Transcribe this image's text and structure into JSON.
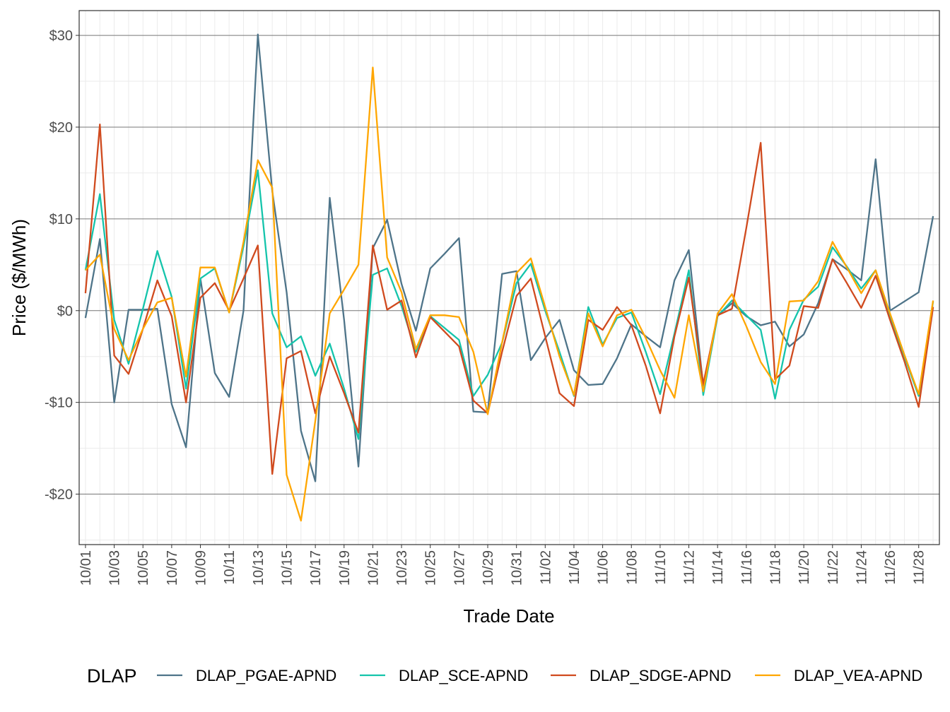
{
  "chart_data": {
    "type": "line",
    "title": "",
    "xlabel": "Trade Date",
    "ylabel": "Price ($/MWh)",
    "ylim": [
      -25.5,
      32.7
    ],
    "yticks": [
      -20,
      -10,
      0,
      10,
      20,
      30
    ],
    "ytick_labels": [
      "-$20",
      "-$10",
      "$0",
      "$10",
      "$20",
      "$30"
    ],
    "grid": true,
    "legend_title": "DLAP",
    "legend_position": "bottom",
    "x": [
      "10/01",
      "10/02",
      "10/03",
      "10/04",
      "10/05",
      "10/06",
      "10/07",
      "10/08",
      "10/09",
      "10/10",
      "10/11",
      "10/12",
      "10/13",
      "10/14",
      "10/15",
      "10/16",
      "10/17",
      "10/18",
      "10/19",
      "10/20",
      "10/21",
      "10/22",
      "10/23",
      "10/24",
      "10/25",
      "10/26",
      "10/27",
      "10/28",
      "10/29",
      "10/30",
      "10/31",
      "11/01",
      "11/02",
      "11/03",
      "11/04",
      "11/05",
      "11/06",
      "11/07",
      "11/08",
      "11/09",
      "11/10",
      "11/11",
      "11/12",
      "11/13",
      "11/14",
      "11/15",
      "11/16",
      "11/17",
      "11/18",
      "11/19",
      "11/20",
      "11/21",
      "11/22",
      "11/23",
      "11/24",
      "11/25",
      "11/26",
      "11/27",
      "11/28",
      "11/29"
    ],
    "xtick_labels": [
      "10/01",
      "10/03",
      "10/05",
      "10/07",
      "10/09",
      "10/11",
      "10/13",
      "10/15",
      "10/17",
      "10/19",
      "10/21",
      "10/23",
      "10/25",
      "10/27",
      "10/29",
      "10/31",
      "11/02",
      "11/04",
      "11/06",
      "11/08",
      "11/10",
      "11/12",
      "11/14",
      "11/16",
      "11/18",
      "11/20",
      "11/22",
      "11/24",
      "11/26",
      "11/28"
    ],
    "series": [
      {
        "name": "DLAP_PGAE-APND",
        "color": "#4e7489",
        "values": [
          -0.8,
          7.8,
          -10,
          0.1,
          0.1,
          0.2,
          -10.2,
          -14.9,
          3.5,
          -6.8,
          -9.4,
          0,
          30.1,
          13,
          2,
          -13.1,
          -18.6,
          12.3,
          -1,
          -17,
          6.8,
          9.9,
          2.9,
          -2.2,
          4.6,
          6.2,
          7.9,
          -11,
          -11.1,
          4,
          4.3,
          -5.4,
          -3,
          -1,
          -6.5,
          -8.1,
          -8,
          -5.2,
          -1.5,
          -2.8,
          -4,
          3.3,
          6.6,
          -8.3,
          -0.5,
          0.8,
          -0.6,
          -1.6,
          -1.2,
          -3.9,
          -2.6,
          0.8,
          5.6,
          4.5,
          3.3,
          16.5,
          0,
          1,
          2,
          10.3
        ]
      },
      {
        "name": "DLAP_SCE-APND",
        "color": "#14c4ab",
        "values": [
          4.4,
          12.7,
          -1,
          -5.8,
          0.2,
          6.5,
          1.5,
          -8.5,
          3.5,
          4.6,
          -0.2,
          7,
          15.3,
          -0.3,
          -4,
          -2.8,
          -7.1,
          -3.6,
          -8.5,
          -14,
          3.9,
          4.6,
          0.5,
          -4.5,
          -0.6,
          -1.9,
          -3.2,
          -9.3,
          -7,
          -3.5,
          3,
          5.1,
          0,
          -4.5,
          -9.3,
          0.4,
          -3.7,
          -0.8,
          -0.2,
          -4.5,
          -9.1,
          -2.5,
          4.4,
          -9.2,
          -0.6,
          1.1,
          -0.5,
          -2.1,
          -9.6,
          -2.1,
          1.2,
          2.6,
          6.9,
          4.8,
          2.4,
          4.4,
          -0.8,
          -5,
          -9.3,
          1
        ]
      },
      {
        "name": "DLAP_SDGE-APND",
        "color": "#d04a1e",
        "values": [
          1.9,
          20.3,
          -4.9,
          -6.9,
          -2,
          3.3,
          -0.6,
          -10,
          1.4,
          3,
          0,
          3.5,
          7.1,
          -17.8,
          -5.2,
          -4.4,
          -11.2,
          -5,
          -9,
          -13.3,
          7.1,
          0.1,
          1.1,
          -5.1,
          -0.7,
          -2.3,
          -3.9,
          -9.8,
          -11.2,
          -4.5,
          1.6,
          3.5,
          -2.8,
          -9,
          -10.4,
          -1,
          -2.1,
          0.4,
          -1.6,
          -6,
          -11.2,
          -2.8,
          3.6,
          -8,
          -0.5,
          0.2,
          9,
          18.3,
          -7.5,
          -6,
          0.5,
          0.3,
          5.6,
          3,
          0.3,
          3.8,
          -1,
          -5.5,
          -10.5,
          0.4
        ]
      },
      {
        "name": "DLAP_VEA-APND",
        "color": "#ffa600",
        "values": [
          4.4,
          6.1,
          -2,
          -5.4,
          -2,
          0.9,
          1.4,
          -7.2,
          4.7,
          4.7,
          -0.2,
          7.5,
          16.4,
          13.4,
          -17.9,
          -22.9,
          -12,
          -0.3,
          2.3,
          5,
          26.5,
          5.8,
          2,
          -4.2,
          -0.5,
          -0.5,
          -0.7,
          -4.5,
          -11.3,
          -3.5,
          4.1,
          5.7,
          0.4,
          -5,
          -9.2,
          -0.3,
          -3.9,
          -0.5,
          0.1,
          -3,
          -6.5,
          -9.5,
          -0.5,
          -8.8,
          -0.3,
          1.8,
          -1.7,
          -5.6,
          -8,
          1,
          1.1,
          3.2,
          7.5,
          4.7,
          1.9,
          4.4,
          -0.3,
          -4.8,
          -9.1,
          1.1
        ]
      }
    ]
  }
}
